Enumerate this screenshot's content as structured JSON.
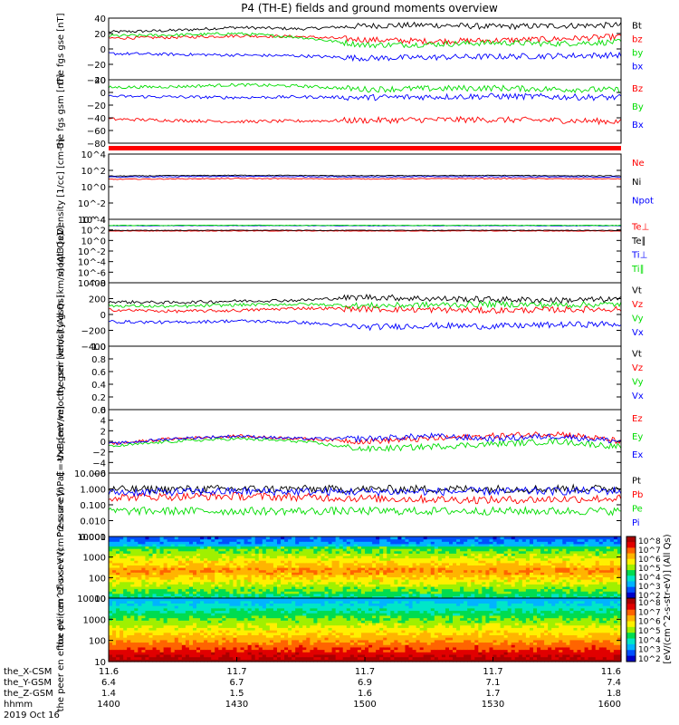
{
  "title": "P4 (TH-E) fields and ground moments overview",
  "colors": {
    "black": "#000000",
    "red": "#ff0000",
    "green": "#00dd00",
    "blue": "#0000ff"
  },
  "x_axis": {
    "ylabels": [
      "the_X-CSM",
      "the_Y-GSM",
      "the_Z-GSM",
      "hhmm"
    ],
    "columns": [
      [
        "11.6",
        "6.4",
        "1.4",
        "1400"
      ],
      [
        "11.7",
        "6.7",
        "1.5",
        "1430"
      ],
      [
        "11.7",
        "6.9",
        "1.6",
        "1500"
      ],
      [
        "11.7",
        "7.1",
        "1.7",
        "1530"
      ],
      [
        "11.6",
        "7.4",
        "1.8",
        "1600"
      ]
    ],
    "date": "2019 Oct 16"
  },
  "colorbar": {
    "label": "[eV/(cm^2-s-str-eV)]",
    "label_right": "[eV/(cm^2-s-str-eV)] (All Qs)",
    "ticks": [
      "10^8",
      "10^7",
      "10^6",
      "10^5",
      "10^4",
      "10^3",
      "10^2"
    ]
  },
  "chart_data": [
    {
      "type": "line",
      "panel": "fgs",
      "ylabel": "the fgs gse [nT]",
      "ylim": [
        -40,
        40
      ],
      "yticks": [
        "40",
        "20",
        "0",
        "−20",
        "−40"
      ],
      "series": [
        {
          "name": "Bt",
          "color": "#000000",
          "x": [
            0,
            15,
            30,
            45,
            60,
            75,
            90,
            105,
            120
          ],
          "values": [
            22,
            24,
            28,
            26,
            30,
            31,
            29,
            30,
            31
          ]
        },
        {
          "name": "bz",
          "color": "#ff0000",
          "x": [
            0,
            15,
            30,
            45,
            60,
            75,
            90,
            105,
            120
          ],
          "values": [
            14,
            15,
            17,
            16,
            12,
            10,
            11,
            13,
            16
          ]
        },
        {
          "name": "by",
          "color": "#00dd00",
          "x": [
            0,
            15,
            30,
            45,
            60,
            75,
            90,
            105,
            120
          ],
          "values": [
            17,
            18,
            20,
            15,
            5,
            6,
            8,
            7,
            9
          ]
        },
        {
          "name": "bx",
          "color": "#0000ff",
          "x": [
            0,
            15,
            30,
            45,
            60,
            75,
            90,
            105,
            120
          ],
          "values": [
            -6,
            -7,
            -8,
            -9,
            -12,
            -11,
            -10,
            -9,
            -8
          ]
        }
      ]
    },
    {
      "type": "line",
      "panel": "fgs-gsm",
      "ylabel": "the fgs gsm [nT]",
      "ylim": [
        -80,
        20
      ],
      "yticks": [
        "20",
        "0",
        "−20",
        "−40",
        "−60",
        "−80"
      ],
      "series": [
        {
          "name": "Bz",
          "color": "#ff0000",
          "x": [
            0,
            15,
            30,
            45,
            60,
            75,
            90,
            105,
            120
          ],
          "values": [
            -42,
            -44,
            -46,
            -45,
            -44,
            -43,
            -43,
            -44,
            -46
          ]
        },
        {
          "name": "By",
          "color": "#00dd00",
          "x": [
            0,
            15,
            30,
            45,
            60,
            75,
            90,
            105,
            120
          ],
          "values": [
            8,
            9,
            12,
            10,
            5,
            6,
            7,
            5,
            4
          ]
        },
        {
          "name": "Bx",
          "color": "#0000ff",
          "x": [
            0,
            15,
            30,
            45,
            60,
            75,
            90,
            105,
            120
          ],
          "values": [
            -6,
            -7,
            -8,
            -7,
            -8,
            -7,
            -6,
            -7,
            -8
          ]
        }
      ]
    },
    {
      "type": "line",
      "panel": "density",
      "yscale": "log",
      "ylabel": "Density [1/cc] [cm-3]",
      "ylim": [
        0.0001,
        10000
      ],
      "yticks": [
        "10^4",
        "10^2",
        "10^0",
        "10^-2",
        "10^-4"
      ],
      "series": [
        {
          "name": "Ne",
          "color": "#ff0000",
          "x": [
            0,
            30,
            60,
            90,
            120
          ],
          "values": [
            8,
            10,
            9,
            10,
            9
          ]
        },
        {
          "name": "Ni",
          "color": "#000000",
          "x": [
            0,
            30,
            60,
            90,
            120
          ],
          "values": [
            20,
            25,
            22,
            24,
            21
          ]
        },
        {
          "name": "Npot",
          "color": "#0000ff",
          "x": [
            0,
            30,
            60,
            90,
            120
          ],
          "values": [
            15,
            18,
            16,
            17,
            15
          ]
        }
      ]
    },
    {
      "type": "line",
      "panel": "temperature",
      "yscale": "log",
      "ylabel": "moqt3 [eV]",
      "ylim": [
        1e-08,
        10000
      ],
      "yticks": [
        "10^4",
        "10^2",
        "10^0",
        "10^-2",
        "10^-4",
        "10^-6",
        "10^-8"
      ],
      "series": [
        {
          "name": "Te⊥",
          "color": "#ff0000",
          "x": [
            0,
            30,
            60,
            90,
            120
          ],
          "values": [
            60,
            65,
            62,
            64,
            60
          ]
        },
        {
          "name": "Te∥",
          "color": "#000000",
          "x": [
            0,
            30,
            60,
            90,
            120
          ],
          "values": [
            80,
            85,
            82,
            84,
            80
          ]
        },
        {
          "name": "Ti⊥",
          "color": "#0000ff",
          "x": [
            0,
            30,
            60,
            90,
            120
          ],
          "values": [
            600,
            650,
            620,
            640,
            600
          ]
        },
        {
          "name": "Ti∥",
          "color": "#00dd00",
          "x": [
            0,
            30,
            60,
            90,
            120
          ],
          "values": [
            700,
            750,
            720,
            740,
            700
          ]
        }
      ]
    },
    {
      "type": "line",
      "panel": "peir-velocity",
      "ylabel": "the peir velocity gsm [km/s] (All Qs)",
      "ylim": [
        -400,
        400
      ],
      "yticks": [
        "400",
        "200",
        "0",
        "−200",
        "−400"
      ],
      "series": [
        {
          "name": "Vt",
          "color": "#000000",
          "x": [
            0,
            15,
            30,
            45,
            60,
            75,
            90,
            105,
            120
          ],
          "values": [
            160,
            150,
            170,
            180,
            220,
            200,
            190,
            180,
            190
          ]
        },
        {
          "name": "Vz",
          "color": "#ff0000",
          "x": [
            0,
            15,
            30,
            45,
            60,
            75,
            90,
            105,
            120
          ],
          "values": [
            60,
            40,
            50,
            80,
            70,
            60,
            50,
            60,
            70
          ]
        },
        {
          "name": "Vy",
          "color": "#00dd00",
          "x": [
            0,
            15,
            30,
            45,
            60,
            75,
            90,
            105,
            120
          ],
          "values": [
            110,
            100,
            120,
            130,
            110,
            120,
            130,
            120,
            130
          ]
        },
        {
          "name": "Vx",
          "color": "#0000ff",
          "x": [
            0,
            15,
            30,
            45,
            60,
            75,
            90,
            105,
            120
          ],
          "values": [
            -90,
            -100,
            -80,
            -100,
            -160,
            -140,
            -150,
            -130,
            -120
          ]
        }
      ]
    },
    {
      "type": "line",
      "panel": "peer-velocity",
      "ylabel": "the peer velocity gsm [km/s] (All Qs)",
      "ylim": [
        0.0,
        1.0
      ],
      "yticks": [
        "1.0",
        "0.8",
        "0.6",
        "0.4",
        "0.2",
        "0.0"
      ],
      "series": [
        {
          "name": "Vt",
          "color": "#000000",
          "x": [],
          "values": []
        },
        {
          "name": "Vz",
          "color": "#ff0000",
          "x": [],
          "values": []
        },
        {
          "name": "Vy",
          "color": "#00dd00",
          "x": [],
          "values": []
        },
        {
          "name": "Vx",
          "color": "#0000ff",
          "x": [],
          "values": []
        }
      ]
    },
    {
      "type": "line",
      "panel": "efield",
      "ylabel": "E=-VxB [mV/m]",
      "ylim": [
        -6,
        6
      ],
      "yticks": [
        "6",
        "4",
        "2",
        "0",
        "−2",
        "−4",
        "−6"
      ],
      "series": [
        {
          "name": "Ez",
          "color": "#ff0000",
          "x": [
            0,
            15,
            30,
            45,
            60,
            75,
            90,
            105,
            120
          ],
          "values": [
            -0.5,
            0.5,
            1,
            0.5,
            0,
            0.5,
            1,
            1.5,
            0
          ]
        },
        {
          "name": "Ey",
          "color": "#00dd00",
          "x": [
            0,
            15,
            30,
            45,
            60,
            75,
            90,
            105,
            120
          ],
          "values": [
            -1,
            0,
            0.5,
            0,
            -1.5,
            -1,
            -0.5,
            0,
            -1
          ]
        },
        {
          "name": "Ex",
          "color": "#0000ff",
          "x": [
            0,
            15,
            30,
            45,
            60,
            75,
            90,
            105,
            120
          ],
          "values": [
            -0.5,
            0.5,
            1,
            0.5,
            0.5,
            1,
            0.5,
            1,
            0
          ]
        }
      ]
    },
    {
      "type": "line",
      "panel": "pressure",
      "yscale": "log",
      "ylabel": "Pressure [nPa]",
      "ylim": [
        0.001,
        10
      ],
      "yticks": [
        "10.000",
        "1.000",
        "0.100",
        "0.010",
        "0.001"
      ],
      "series": [
        {
          "name": "Pt",
          "color": "#000000",
          "x": [
            0,
            30,
            60,
            90,
            120
          ],
          "values": [
            0.9,
            1.0,
            0.95,
            1.0,
            1.05
          ]
        },
        {
          "name": "Pb",
          "color": "#ff0000",
          "x": [
            0,
            30,
            60,
            90,
            120
          ],
          "values": [
            0.3,
            0.35,
            0.25,
            0.2,
            0.25
          ]
        },
        {
          "name": "Pe",
          "color": "#00dd00",
          "x": [
            0,
            30,
            60,
            90,
            120
          ],
          "values": [
            0.04,
            0.04,
            0.04,
            0.04,
            0.04
          ]
        },
        {
          "name": "Pi",
          "color": "#0000ff",
          "x": [
            0,
            30,
            60,
            90,
            120
          ],
          "values": [
            0.6,
            0.7,
            0.65,
            0.7,
            0.75
          ]
        }
      ]
    },
    {
      "type": "heatmap",
      "panel": "peir-spectrogram",
      "yscale": "log",
      "ylabel": "the peir en eflux eV (cm^2-s-sr-eV)",
      "ylim": [
        5,
        25000
      ],
      "yticks": [
        "10000",
        "1000",
        "100",
        "10"
      ]
    },
    {
      "type": "heatmap",
      "panel": "peer-spectrogram",
      "yscale": "log",
      "ylabel": "the peer en eflux eV (cm^2-s-sr-eV)",
      "ylim": [
        5,
        25000
      ],
      "yticks": [
        "10000",
        "1000",
        "100",
        "10"
      ]
    }
  ]
}
